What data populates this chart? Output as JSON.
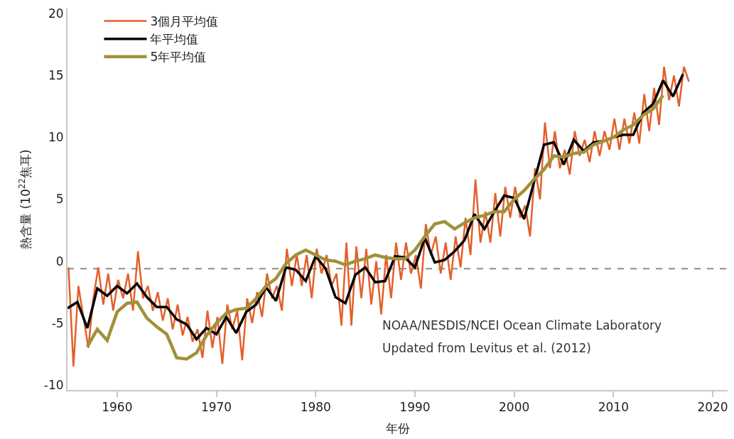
{
  "chart_data": {
    "type": "line",
    "xlabel": "年份",
    "ylabel": "熱含量 (10$^{22}$焦耳)",
    "xlim": [
      1955,
      2021.5
    ],
    "xticks": [
      1960,
      1970,
      1980,
      1990,
      2000,
      2010,
      2020
    ],
    "ylim": [
      -10.4,
      20.4
    ],
    "yticks": [
      -10,
      -5,
      0,
      5,
      10,
      15,
      20
    ],
    "grid": false,
    "legend": "top left",
    "marker": "none",
    "line_style": "solid",
    "ref_lines": [
      {
        "axis": "y",
        "value": -0.6,
        "color": "#8c8c8c",
        "line_style": "dashed"
      }
    ],
    "annotations": [
      "NOAA/NESDIS/NCEI Ocean Climate Laboratory",
      "Updated from Levitus et al. (2012)"
    ],
    "series": [
      {
        "name": "3個月平均值",
        "color": "#e4602a",
        "x": [
          1955.1,
          1955.6,
          1956.1,
          1956.6,
          1957.1,
          1957.6,
          1958.1,
          1958.6,
          1959.1,
          1959.6,
          1960.1,
          1960.6,
          1961.1,
          1961.6,
          1962.1,
          1962.6,
          1963.1,
          1963.6,
          1964.1,
          1964.6,
          1965.1,
          1965.6,
          1966.1,
          1966.6,
          1967.1,
          1967.6,
          1968.1,
          1968.6,
          1969.1,
          1969.6,
          1970.1,
          1970.6,
          1971.1,
          1971.6,
          1972.1,
          1972.6,
          1973.1,
          1973.6,
          1974.1,
          1974.6,
          1975.1,
          1975.6,
          1976.1,
          1976.6,
          1977.1,
          1977.6,
          1978.1,
          1978.6,
          1979.1,
          1979.6,
          1980.1,
          1980.6,
          1981.1,
          1981.6,
          1982.1,
          1982.6,
          1983.1,
          1983.6,
          1984.1,
          1984.6,
          1985.1,
          1985.6,
          1986.1,
          1986.6,
          1987.1,
          1987.6,
          1988.1,
          1988.6,
          1989.1,
          1989.6,
          1990.1,
          1990.6,
          1991.1,
          1991.6,
          1992.1,
          1992.6,
          1993.1,
          1993.6,
          1994.1,
          1994.6,
          1995.1,
          1995.6,
          1996.1,
          1996.6,
          1997.1,
          1997.6,
          1998.1,
          1998.6,
          1999.1,
          1999.6,
          2000.1,
          2000.6,
          2001.1,
          2001.6,
          2002.1,
          2002.6,
          2003.1,
          2003.6,
          2004.1,
          2004.6,
          2005.1,
          2005.6,
          2006.1,
          2006.6,
          2007.1,
          2007.6,
          2008.1,
          2008.6,
          2009.1,
          2009.6,
          2010.1,
          2010.6,
          2011.1,
          2011.6,
          2012.1,
          2012.6,
          2013.1,
          2013.6,
          2014.1,
          2014.6,
          2015.1,
          2015.6,
          2016.1,
          2016.6,
          2017.1,
          2017.6
        ],
        "values": [
          -0.5,
          -8.5,
          -2.0,
          -4.5,
          -7.0,
          -3.0,
          -0.5,
          -3.5,
          -1.0,
          -4.0,
          -1.5,
          -3.0,
          -1.0,
          -4.0,
          0.8,
          -3.0,
          -2.0,
          -4.0,
          -2.5,
          -4.8,
          -3.0,
          -5.5,
          -3.5,
          -6.0,
          -4.5,
          -6.5,
          -5.5,
          -7.8,
          -4.0,
          -7.0,
          -4.5,
          -8.3,
          -3.5,
          -5.5,
          -4.0,
          -8.0,
          -3.0,
          -5.0,
          -2.5,
          -4.5,
          -1.0,
          -3.0,
          -2.0,
          -4.0,
          1.0,
          -2.0,
          0.5,
          -2.0,
          0.5,
          -3.0,
          1.0,
          -1.0,
          0.5,
          -2.0,
          -1.0,
          -5.2,
          1.5,
          -5.2,
          1.2,
          -3.0,
          1.0,
          -3.5,
          0.0,
          -4.3,
          0.5,
          -3.0,
          1.5,
          -1.5,
          1.5,
          -1.0,
          0.5,
          -2.2,
          3.0,
          0.5,
          2.0,
          -1.0,
          1.5,
          -1.5,
          2.0,
          -0.5,
          3.5,
          0.5,
          6.6,
          1.5,
          4.0,
          1.5,
          5.5,
          2.0,
          6.0,
          3.5,
          6.0,
          3.5,
          4.5,
          2.0,
          7.5,
          5.0,
          11.2,
          7.5,
          10.5,
          7.5,
          9.0,
          7.0,
          10.5,
          8.5,
          9.8,
          8.0,
          10.5,
          8.5,
          10.5,
          9.0,
          11.5,
          9.0,
          11.5,
          9.5,
          12.0,
          9.5,
          13.5,
          10.5,
          14.0,
          11.0,
          15.7,
          13.0,
          15.0,
          12.5,
          15.7,
          14.5
        ]
      },
      {
        "name": "年平均值",
        "color": "#000000",
        "x": [
          1955,
          1956,
          1957,
          1958,
          1959,
          1960,
          1961,
          1962,
          1963,
          1964,
          1965,
          1966,
          1967,
          1968,
          1969,
          1970,
          1971,
          1972,
          1973,
          1974,
          1975,
          1976,
          1977,
          1978,
          1979,
          1980,
          1981,
          1982,
          1983,
          1984,
          1985,
          1986,
          1987,
          1988,
          1989,
          1990,
          1991,
          1992,
          1993,
          1994,
          1995,
          1996,
          1997,
          1998,
          1999,
          2000,
          2001,
          2002,
          2003,
          2004,
          2005,
          2006,
          2007,
          2008,
          2009,
          2010,
          2011,
          2012,
          2013,
          2014,
          2015,
          2016,
          2017
        ],
        "values": [
          -3.8,
          -3.3,
          -5.4,
          -2.2,
          -2.8,
          -2.0,
          -2.6,
          -1.8,
          -2.9,
          -3.7,
          -3.7,
          -4.7,
          -5.1,
          -6.3,
          -5.4,
          -5.9,
          -4.5,
          -5.8,
          -4.1,
          -3.5,
          -2.1,
          -3.2,
          -0.5,
          -0.7,
          -1.6,
          0.4,
          -0.6,
          -2.9,
          -3.4,
          -1.1,
          -0.5,
          -1.7,
          -1.6,
          0.4,
          0.3,
          -0.5,
          1.9,
          -0.1,
          0.1,
          0.8,
          1.7,
          3.8,
          2.6,
          4.0,
          5.3,
          5.1,
          3.4,
          6.4,
          9.4,
          9.6,
          7.8,
          9.8,
          8.9,
          9.6,
          9.7,
          10.0,
          10.2,
          10.2,
          12.0,
          12.7,
          14.6,
          13.3,
          15.1
        ]
      },
      {
        "name": "5年平均值",
        "color": "#a0913a",
        "x": [
          1957,
          1958,
          1959,
          1960,
          1961,
          1962,
          1963,
          1964,
          1965,
          1966,
          1967,
          1968,
          1969,
          1970,
          1971,
          1972,
          1973,
          1974,
          1975,
          1976,
          1977,
          1978,
          1979,
          1980,
          1981,
          1982,
          1983,
          1984,
          1985,
          1986,
          1987,
          1988,
          1989,
          1990,
          1991,
          1992,
          1993,
          1994,
          1995,
          1996,
          1997,
          1998,
          1999,
          2000,
          2001,
          2002,
          2003,
          2004,
          2005,
          2006,
          2007,
          2008,
          2009,
          2010,
          2011,
          2012,
          2013,
          2014,
          2015
        ],
        "values": [
          -6.9,
          -5.5,
          -6.4,
          -4.1,
          -3.4,
          -3.3,
          -4.6,
          -5.3,
          -5.9,
          -7.8,
          -7.9,
          -7.4,
          -6.0,
          -5.0,
          -4.2,
          -3.9,
          -3.8,
          -3.0,
          -2.0,
          -1.4,
          -0.2,
          0.5,
          0.9,
          0.5,
          0.1,
          0.0,
          -0.3,
          0.0,
          0.2,
          0.5,
          0.3,
          0.2,
          0.2,
          0.9,
          2.0,
          3.0,
          3.2,
          2.6,
          3.1,
          3.5,
          3.7,
          4.0,
          4.0,
          5.0,
          5.7,
          6.6,
          7.4,
          8.5,
          8.4,
          8.7,
          8.8,
          9.4,
          9.7,
          10.0,
          10.6,
          11.0,
          11.8,
          12.3,
          13.4
        ]
      }
    ]
  }
}
